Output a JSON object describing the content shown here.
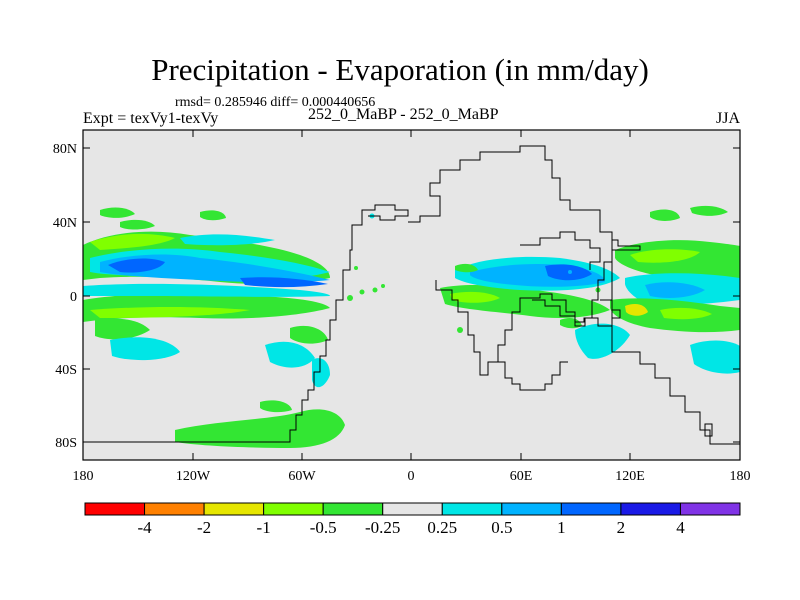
{
  "header": {
    "title": "Precipitation - Evaporation (in mm/day)",
    "stats": "rmsd= 0.285946 diff= 0.000440656",
    "left_label": "Expt = texVy1-texVy",
    "center_label": "252_0_MaBP - 252_0_MaBP",
    "right_label": "JJA"
  },
  "map": {
    "lat_ticks": [
      "80N",
      "40N",
      "0",
      "40S",
      "80S"
    ],
    "lon_ticks": [
      "180",
      "120W",
      "60W",
      "0",
      "60E",
      "120E",
      "180"
    ],
    "background_color": "#e6e6e6"
  },
  "colorbar": {
    "colors": [
      "#ff0000",
      "#ff8000",
      "#e6e600",
      "#80ff00",
      "#33e633",
      "#e6e6e6",
      "#00e6e6",
      "#00b3ff",
      "#0066ff",
      "#1a1ae6",
      "#8033e6"
    ],
    "labels": [
      "-4",
      "-2",
      "-1",
      "-0.5",
      "-0.25",
      "0.25",
      "0.5",
      "1",
      "2",
      "4"
    ]
  }
}
